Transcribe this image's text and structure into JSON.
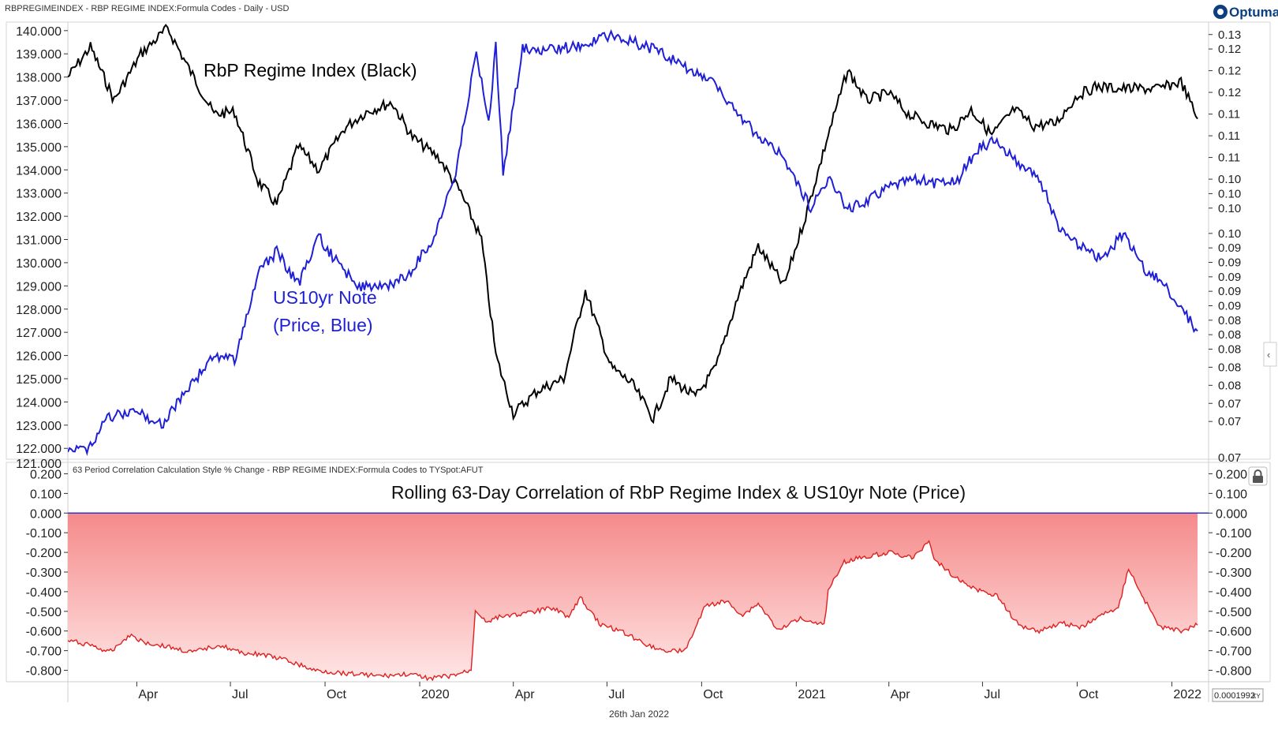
{
  "header": {
    "title": "RBPREGIMEINDEX - RBP REGIME INDEX:Formula Codes - Daily - USD",
    "logo_text": "Optuma"
  },
  "upper_panel": {
    "left_axis_ticks": [
      "140.000",
      "139.000",
      "138.000",
      "137.000",
      "136.000",
      "135.000",
      "134.000",
      "133.000",
      "132.000",
      "131.000",
      "130.000",
      "129.000",
      "128.000",
      "127.000",
      "126.000",
      "125.000",
      "124.000",
      "123.000",
      "122.000"
    ],
    "right_axis_ticks": [
      "0.13",
      "0.12",
      "0.12",
      "0.12",
      "0.11",
      "0.11",
      "0.11",
      "0.10",
      "0.10",
      "0.10",
      "0.10",
      "0.09",
      "0.09",
      "0.09",
      "0.09",
      "0.09",
      "0.08",
      "0.08",
      "0.08",
      "0.08",
      "0.08",
      "0.07",
      "0.07"
    ],
    "right_axis_bottom_partial": "0.07",
    "left_axis_bottom_partial": "121.000"
  },
  "lower_panel": {
    "header": "63 Period Correlation Calculation Style % Change - RBP REGIME INDEX:Formula Codes to TYSpot:AFUT",
    "y_ticks": [
      "0.200",
      "0.100",
      "0.000",
      "-0.100",
      "-0.200",
      "-0.300",
      "-0.400",
      "-0.500",
      "-0.600",
      "-0.700",
      "-0.800"
    ]
  },
  "x_axis": {
    "labels": [
      "Apr",
      "Jul",
      "Oct",
      "2020",
      "Apr",
      "Jul",
      "Oct",
      "2021",
      "Apr",
      "Jul",
      "Oct",
      "2022"
    ],
    "date_footer": "26th Jan 2022",
    "readout": "0.0001992",
    "readout_unit": "XY"
  },
  "chart_data": [
    {
      "type": "line",
      "title": "",
      "annotations": [
        "RbP Regime Index (Black)",
        "US10yr Note",
        "(Price, Blue)"
      ],
      "x_range": [
        "2019-01-24",
        "2022-01-26"
      ],
      "ylim_left": [
        121.6,
        140.3
      ],
      "ylim_right": [
        0.07,
        0.13
      ],
      "series": [
        {
          "axis": "left",
          "color": "#000000",
          "x": [
            "2019-01-24",
            "2019-02-15",
            "2019-03-10",
            "2019-04-05",
            "2019-05-01",
            "2019-05-20",
            "2019-06-15",
            "2019-07-05",
            "2019-07-28",
            "2019-08-15",
            "2019-09-05",
            "2019-09-25",
            "2019-10-20",
            "2019-11-10",
            "2019-12-05",
            "2019-12-25",
            "2020-01-20",
            "2020-02-10",
            "2020-03-01",
            "2020-03-15",
            "2020-04-01",
            "2020-04-25",
            "2020-05-20",
            "2020-06-10",
            "2020-07-05",
            "2020-07-25",
            "2020-08-15",
            "2020-09-01",
            "2020-09-25",
            "2020-10-15",
            "2020-11-05",
            "2020-11-25",
            "2020-12-20",
            "2021-01-10",
            "2021-02-01",
            "2021-02-20",
            "2021-03-10",
            "2021-04-01",
            "2021-04-20",
            "2021-05-10",
            "2021-06-01",
            "2021-06-20",
            "2021-07-10",
            "2021-08-01",
            "2021-08-20",
            "2021-09-10",
            "2021-10-01",
            "2021-10-20",
            "2021-11-10",
            "2021-12-01",
            "2021-12-20",
            "2022-01-10",
            "2022-01-26"
          ],
          "values": [
            138.0,
            139.3,
            137.0,
            139.0,
            140.1,
            138.5,
            136.4,
            136.5,
            133.5,
            132.5,
            135.0,
            134.0,
            135.8,
            136.5,
            136.9,
            135.4,
            134.5,
            133.0,
            131.0,
            126.0,
            123.5,
            124.5,
            125.0,
            128.8,
            125.5,
            124.8,
            123.3,
            125.0,
            124.2,
            125.5,
            128.5,
            130.7,
            129.0,
            132.0,
            135.5,
            138.3,
            137.0,
            137.3,
            136.4,
            136.0,
            135.7,
            136.6,
            135.5,
            136.6,
            135.9,
            136.0,
            137.2,
            137.6,
            137.5,
            137.5,
            137.5,
            137.8,
            136.2
          ]
        },
        {
          "axis": "right",
          "color": "#1f1fd6",
          "x": [
            "2019-01-24",
            "2019-02-10",
            "2019-03-05",
            "2019-04-01",
            "2019-04-25",
            "2019-05-20",
            "2019-06-15",
            "2019-07-05",
            "2019-07-28",
            "2019-08-15",
            "2019-09-05",
            "2019-09-25",
            "2019-10-15",
            "2019-11-05",
            "2019-11-25",
            "2019-12-20",
            "2020-01-15",
            "2020-02-05",
            "2020-02-25",
            "2020-03-08",
            "2020-03-15",
            "2020-03-22",
            "2020-04-10",
            "2020-05-10",
            "2020-06-10",
            "2020-07-05",
            "2020-07-25",
            "2020-08-15",
            "2020-09-10",
            "2020-10-10",
            "2020-11-05",
            "2020-11-25",
            "2020-12-20",
            "2021-01-15",
            "2021-02-01",
            "2021-02-20",
            "2021-03-10",
            "2021-04-01",
            "2021-04-25",
            "2021-05-15",
            "2021-06-05",
            "2021-06-25",
            "2021-07-15",
            "2021-08-05",
            "2021-08-25",
            "2021-09-15",
            "2021-10-05",
            "2021-10-25",
            "2021-11-15",
            "2021-12-05",
            "2021-12-25",
            "2022-01-10",
            "2022-01-26"
          ],
          "values": [
            0.0715,
            0.071,
            0.0755,
            0.0765,
            0.0745,
            0.0795,
            0.084,
            0.0835,
            0.0955,
            0.0985,
            0.094,
            0.1005,
            0.0965,
            0.0935,
            0.0935,
            0.095,
            0.1005,
            0.1095,
            0.126,
            0.116,
            0.127,
            0.1095,
            0.1265,
            0.1265,
            0.127,
            0.1285,
            0.1275,
            0.1265,
            0.1245,
            0.122,
            0.1175,
            0.1145,
            0.1115,
            0.1045,
            0.1085,
            0.1045,
            0.1055,
            0.1075,
            0.1085,
            0.108,
            0.108,
            0.1125,
            0.114,
            0.1105,
            0.1085,
            0.1015,
            0.099,
            0.0975,
            0.101,
            0.096,
            0.094,
            0.0905,
            0.0875
          ]
        }
      ]
    },
    {
      "type": "area",
      "title": "Rolling 63-Day Correlation of RbP Regime Index & US10yr Note (Price)",
      "ylim": [
        -0.85,
        0.25
      ],
      "baseline": 0.0,
      "fill_color_top": "#f58a8a",
      "fill_color_bottom": "#ffe6e6",
      "line_color": "#e02020",
      "baseline_color": "#3333cc",
      "x": [
        "2019-01-24",
        "2019-02-15",
        "2019-03-05",
        "2019-03-25",
        "2019-04-10",
        "2019-05-01",
        "2019-05-25",
        "2019-06-20",
        "2019-07-10",
        "2019-08-01",
        "2019-08-25",
        "2019-09-20",
        "2019-10-10",
        "2019-11-05",
        "2019-11-25",
        "2019-12-20",
        "2020-01-10",
        "2020-01-31",
        "2020-02-20",
        "2020-02-24",
        "2020-03-05",
        "2020-03-25",
        "2020-04-15",
        "2020-05-10",
        "2020-05-25",
        "2020-06-05",
        "2020-06-25",
        "2020-07-15",
        "2020-08-05",
        "2020-08-25",
        "2020-09-15",
        "2020-10-05",
        "2020-10-25",
        "2020-11-10",
        "2020-11-25",
        "2020-12-15",
        "2021-01-05",
        "2021-01-28",
        "2021-02-01",
        "2021-02-15",
        "2021-03-10",
        "2021-04-01",
        "2021-04-25",
        "2021-05-10",
        "2021-05-15",
        "2021-06-05",
        "2021-06-25",
        "2021-07-15",
        "2021-08-05",
        "2021-08-25",
        "2021-09-15",
        "2021-10-05",
        "2021-10-25",
        "2021-11-10",
        "2021-11-20",
        "2021-12-01",
        "2021-12-20",
        "2022-01-10",
        "2022-01-26"
      ],
      "values": [
        -0.65,
        -0.67,
        -0.71,
        -0.62,
        -0.66,
        -0.68,
        -0.71,
        -0.67,
        -0.71,
        -0.72,
        -0.75,
        -0.8,
        -0.81,
        -0.82,
        -0.83,
        -0.82,
        -0.84,
        -0.83,
        -0.8,
        -0.49,
        -0.55,
        -0.52,
        -0.51,
        -0.48,
        -0.53,
        -0.43,
        -0.57,
        -0.6,
        -0.66,
        -0.7,
        -0.7,
        -0.47,
        -0.45,
        -0.52,
        -0.46,
        -0.6,
        -0.53,
        -0.57,
        -0.4,
        -0.25,
        -0.22,
        -0.2,
        -0.23,
        -0.14,
        -0.23,
        -0.33,
        -0.39,
        -0.42,
        -0.57,
        -0.6,
        -0.56,
        -0.58,
        -0.52,
        -0.48,
        -0.28,
        -0.4,
        -0.58,
        -0.6,
        -0.57
      ]
    }
  ]
}
